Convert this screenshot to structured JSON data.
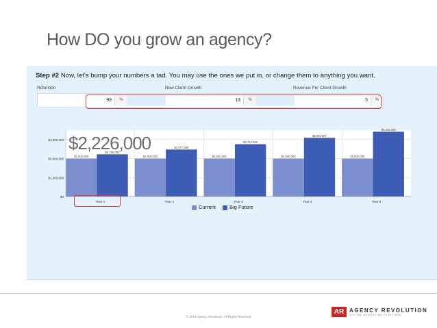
{
  "title": "How DO you grow an agency?",
  "step": {
    "label": "Step #2",
    "text": "Now, let's bump your numbers a tad. You may use the ones we put in, or change them to anything you want."
  },
  "fields": [
    {
      "label": "Retention",
      "value": "93",
      "unit": "%"
    },
    {
      "label": "New Client Growth",
      "value": "13",
      "unit": "%"
    },
    {
      "label": "Revenue Per Client Growth",
      "value": "5",
      "unit": "%"
    }
  ],
  "highlight_value": "$2,226,000",
  "chart_data": {
    "type": "bar",
    "categories": [
      "Year 1",
      "Year 2",
      "Year 3",
      "Year 4",
      "Year 5"
    ],
    "series": [
      {
        "name": "Current",
        "values": [
          2000000,
          2000000,
          2000000,
          2000000,
          2000000
        ],
        "labels": [
          "$2,000,000",
          "$2,000,000",
          "$2,000,000",
          "$2,000,000",
          "$2,000,000"
        ],
        "color": "#7b8fce"
      },
      {
        "name": "Big Future",
        "values": [
          2226000,
          2477938,
          2757500,
          3093987,
          3415335
        ],
        "labels": [
          "$2,226,000",
          "$2,477,938",
          "$2,757,500",
          "$3,093,987",
          "$3,415,335"
        ],
        "color": "#3d5db4"
      }
    ],
    "yticks": [
      "$0",
      "$1,000,000",
      "$2,000,000",
      "$3,000,000"
    ],
    "ylim": [
      0,
      3500000
    ],
    "grid": true,
    "legend": "bottom"
  },
  "copyright": "© 2015 Agency Revolution, All Rights Reserved",
  "logo": {
    "mark": "AR",
    "name": "AGENCY REVOLUTION",
    "tagline": "DIGITAL MARKETING PLATFORM"
  }
}
